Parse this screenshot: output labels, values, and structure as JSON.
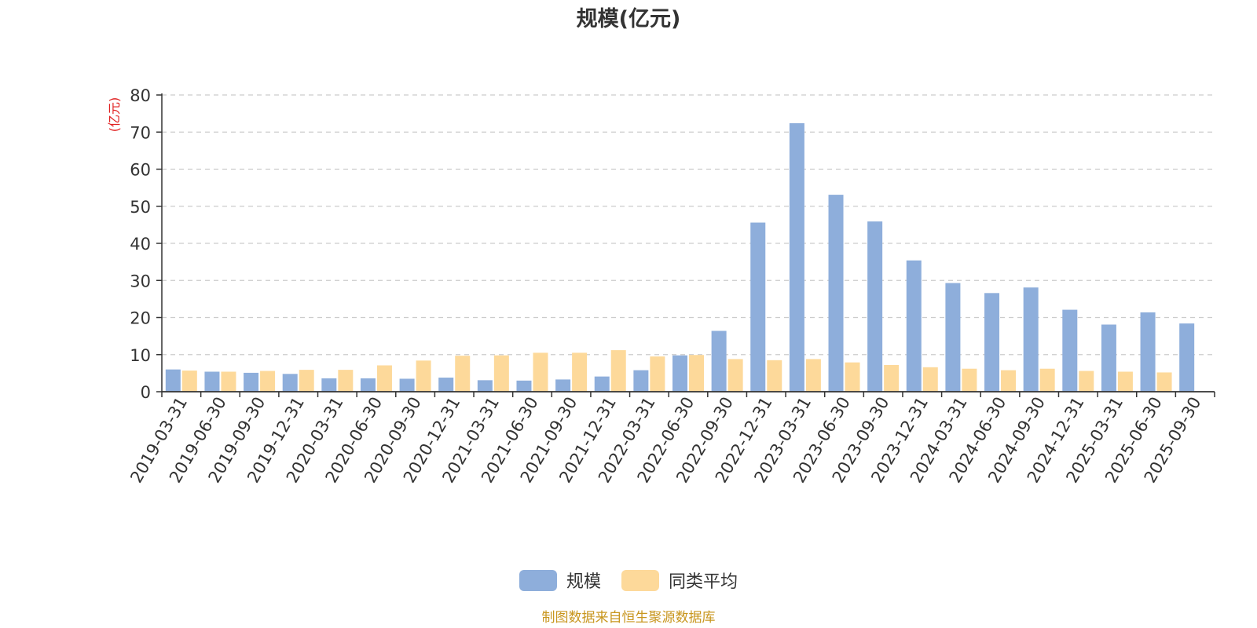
{
  "chart_data": {
    "type": "bar",
    "title": "规模(亿元)",
    "ylabel": "(亿元)",
    "ylim": [
      0,
      80
    ],
    "yticks": [
      0,
      10,
      20,
      30,
      40,
      50,
      60,
      70,
      80
    ],
    "grid": true,
    "legend_position": "bottom-center",
    "categories": [
      "2019-03-31",
      "2019-06-30",
      "2019-09-30",
      "2019-12-31",
      "2020-03-31",
      "2020-06-30",
      "2020-09-30",
      "2020-12-31",
      "2021-03-31",
      "2021-06-30",
      "2021-09-30",
      "2021-12-31",
      "2022-03-31",
      "2022-06-30",
      "2022-09-30",
      "2022-12-31",
      "2023-03-31",
      "2023-06-30",
      "2023-09-30",
      "2023-12-31",
      "2024-03-31",
      "2024-06-30",
      "2024-09-30",
      "2024-12-31",
      "2025-03-31",
      "2025-06-30",
      "2025-09-30"
    ],
    "series": [
      {
        "name": "规模",
        "color": "#8eaedb",
        "values": [
          6.0,
          5.4,
          5.1,
          4.8,
          3.6,
          3.6,
          3.5,
          3.8,
          3.1,
          3.0,
          3.3,
          4.1,
          5.8,
          9.8,
          16.4,
          45.6,
          72.4,
          53.1,
          45.9,
          35.4,
          29.3,
          26.6,
          28.1,
          22.1,
          18.1,
          21.4,
          18.4
        ]
      },
      {
        "name": "同类平均",
        "color": "#fdd99a",
        "values": [
          5.7,
          5.4,
          5.6,
          5.9,
          5.9,
          7.1,
          8.4,
          9.7,
          9.8,
          10.5,
          10.5,
          11.2,
          9.5,
          9.9,
          8.8,
          8.5,
          8.8,
          7.9,
          7.2,
          6.6,
          6.2,
          5.8,
          6.2,
          5.6,
          5.4,
          5.2,
          null
        ]
      }
    ],
    "source": "制图数据来自恒生聚源数据库",
    "source_color": "#c8961e",
    "unit_color": "#e02020",
    "axis_color": "#333333",
    "grid_color": "#cccccc"
  }
}
